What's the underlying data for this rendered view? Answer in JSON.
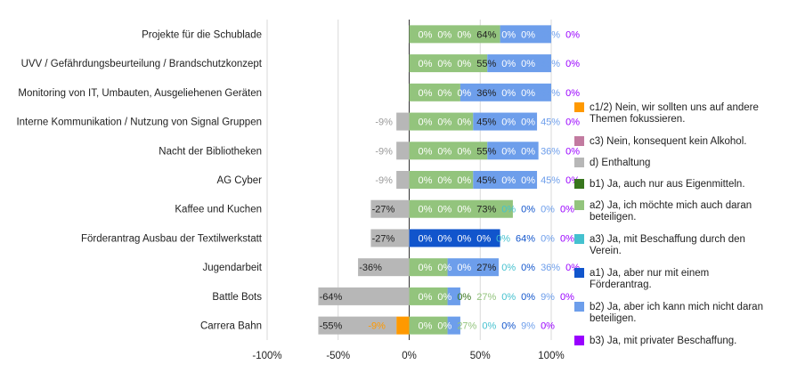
{
  "chart_data": {
    "type": "bar",
    "orientation": "horizontal",
    "stacked": true,
    "xlim": [
      -100,
      100
    ],
    "x_ticks": [
      -100,
      -50,
      0,
      50,
      100
    ],
    "x_tick_labels": [
      "-100%",
      "-50%",
      "0%",
      "50%",
      "100%"
    ],
    "grid": true,
    "legend_position": "right",
    "categories": [
      "Projekte für die Schublade",
      "UVV / Gefährdungsbeurteilung / Brandschutzkonzept",
      "Monitoring von IT, Umbauten, Ausgeliehenen Geräten",
      "Interne Kommunikation / Nutzung von Signal Gruppen",
      "Nacht der Bibliotheken",
      "AG Cyber",
      "Kaffee und Kuchen",
      "Förderantrag Ausbau der Textilwerkstatt",
      "Jugendarbeit",
      "Battle Bots",
      "Carrera Bahn"
    ],
    "negative_series": [
      {
        "name": "c1/2) Nein, wir sollten uns auf andere Themen fokussieren.",
        "color": "#ff9900",
        "values": [
          0,
          0,
          0,
          0,
          0,
          0,
          0,
          0,
          0,
          0,
          -9
        ]
      },
      {
        "name": "c3) Nein, konsequent kein Alkohol.",
        "color": "#c27ba0",
        "values": [
          0,
          0,
          0,
          0,
          0,
          0,
          0,
          0,
          0,
          0,
          0
        ]
      },
      {
        "name": "d) Enthaltung",
        "color": "#b7b7b7",
        "values": [
          0,
          0,
          0,
          -9,
          -9,
          -9,
          -27,
          -27,
          -36,
          -64,
          -55
        ]
      }
    ],
    "positive_series": [
      {
        "name": "b1) Ja, auch nur aus Eigenmitteln.",
        "color": "#38761d",
        "values": [
          0,
          0,
          0,
          0,
          0,
          0,
          0,
          0,
          0,
          0,
          0
        ]
      },
      {
        "name": "a2) Ja, ich möchte mich auch daran beteiligen.",
        "color": "#93c47d",
        "values": [
          64,
          55,
          36,
          45,
          55,
          45,
          73,
          0,
          27,
          27,
          27
        ]
      },
      {
        "name": "a3) Ja, mit Beschaffung durch den Verein.",
        "color": "#45c1cf",
        "values": [
          0,
          0,
          0,
          0,
          0,
          0,
          0,
          0,
          0,
          0,
          0
        ]
      },
      {
        "name": "a1) Ja, aber nur mit einem Förderantrag.",
        "color": "#1155cc",
        "values": [
          0,
          0,
          0,
          0,
          0,
          0,
          0,
          64,
          0,
          0,
          0
        ]
      },
      {
        "name": "b2) Ja, aber ich kann mich nicht daran beteiligen.",
        "color": "#6d9eeb",
        "values": [
          36,
          45,
          64,
          45,
          36,
          45,
          0,
          0,
          36,
          9,
          9
        ]
      },
      {
        "name": "b3) Ja, mit privater Beschaffung.",
        "color": "#9900ff",
        "values": [
          0,
          0,
          0,
          0,
          0,
          0,
          0,
          0,
          0,
          0,
          0
        ]
      }
    ],
    "legend_order": [
      "c1/2) Nein, wir sollten uns auf andere Themen fokussieren.",
      "c3) Nein, konsequent kein Alkohol.",
      "d) Enthaltung",
      "b1) Ja, auch nur aus Eigenmitteln.",
      "a2) Ja, ich möchte mich auch daran beteiligen.",
      "a3) Ja, mit Beschaffung durch den Verein.",
      "a1) Ja, aber nur mit einem Förderantrag.",
      "b2) Ja, aber ich kann mich nicht daran beteiligen.",
      "b3) Ja, mit privater Beschaffung."
    ],
    "positive_label_order": [
      "c1/2) Nein, wir sollten uns auf andere Themen fokussieren.",
      "c3) Nein, konsequent kein Alkohol.",
      "b1) Ja, auch nur aus Eigenmitteln.",
      "a2) Ja, ich möchte mich auch daran beteiligen.",
      "a3) Ja, mit Beschaffung durch den Verein.",
      "a1) Ja, aber nur mit einem Förderantrag.",
      "b2) Ja, aber ich kann mich nicht daran beteiligen.",
      "b3) Ja, mit privater Beschaffung."
    ]
  }
}
